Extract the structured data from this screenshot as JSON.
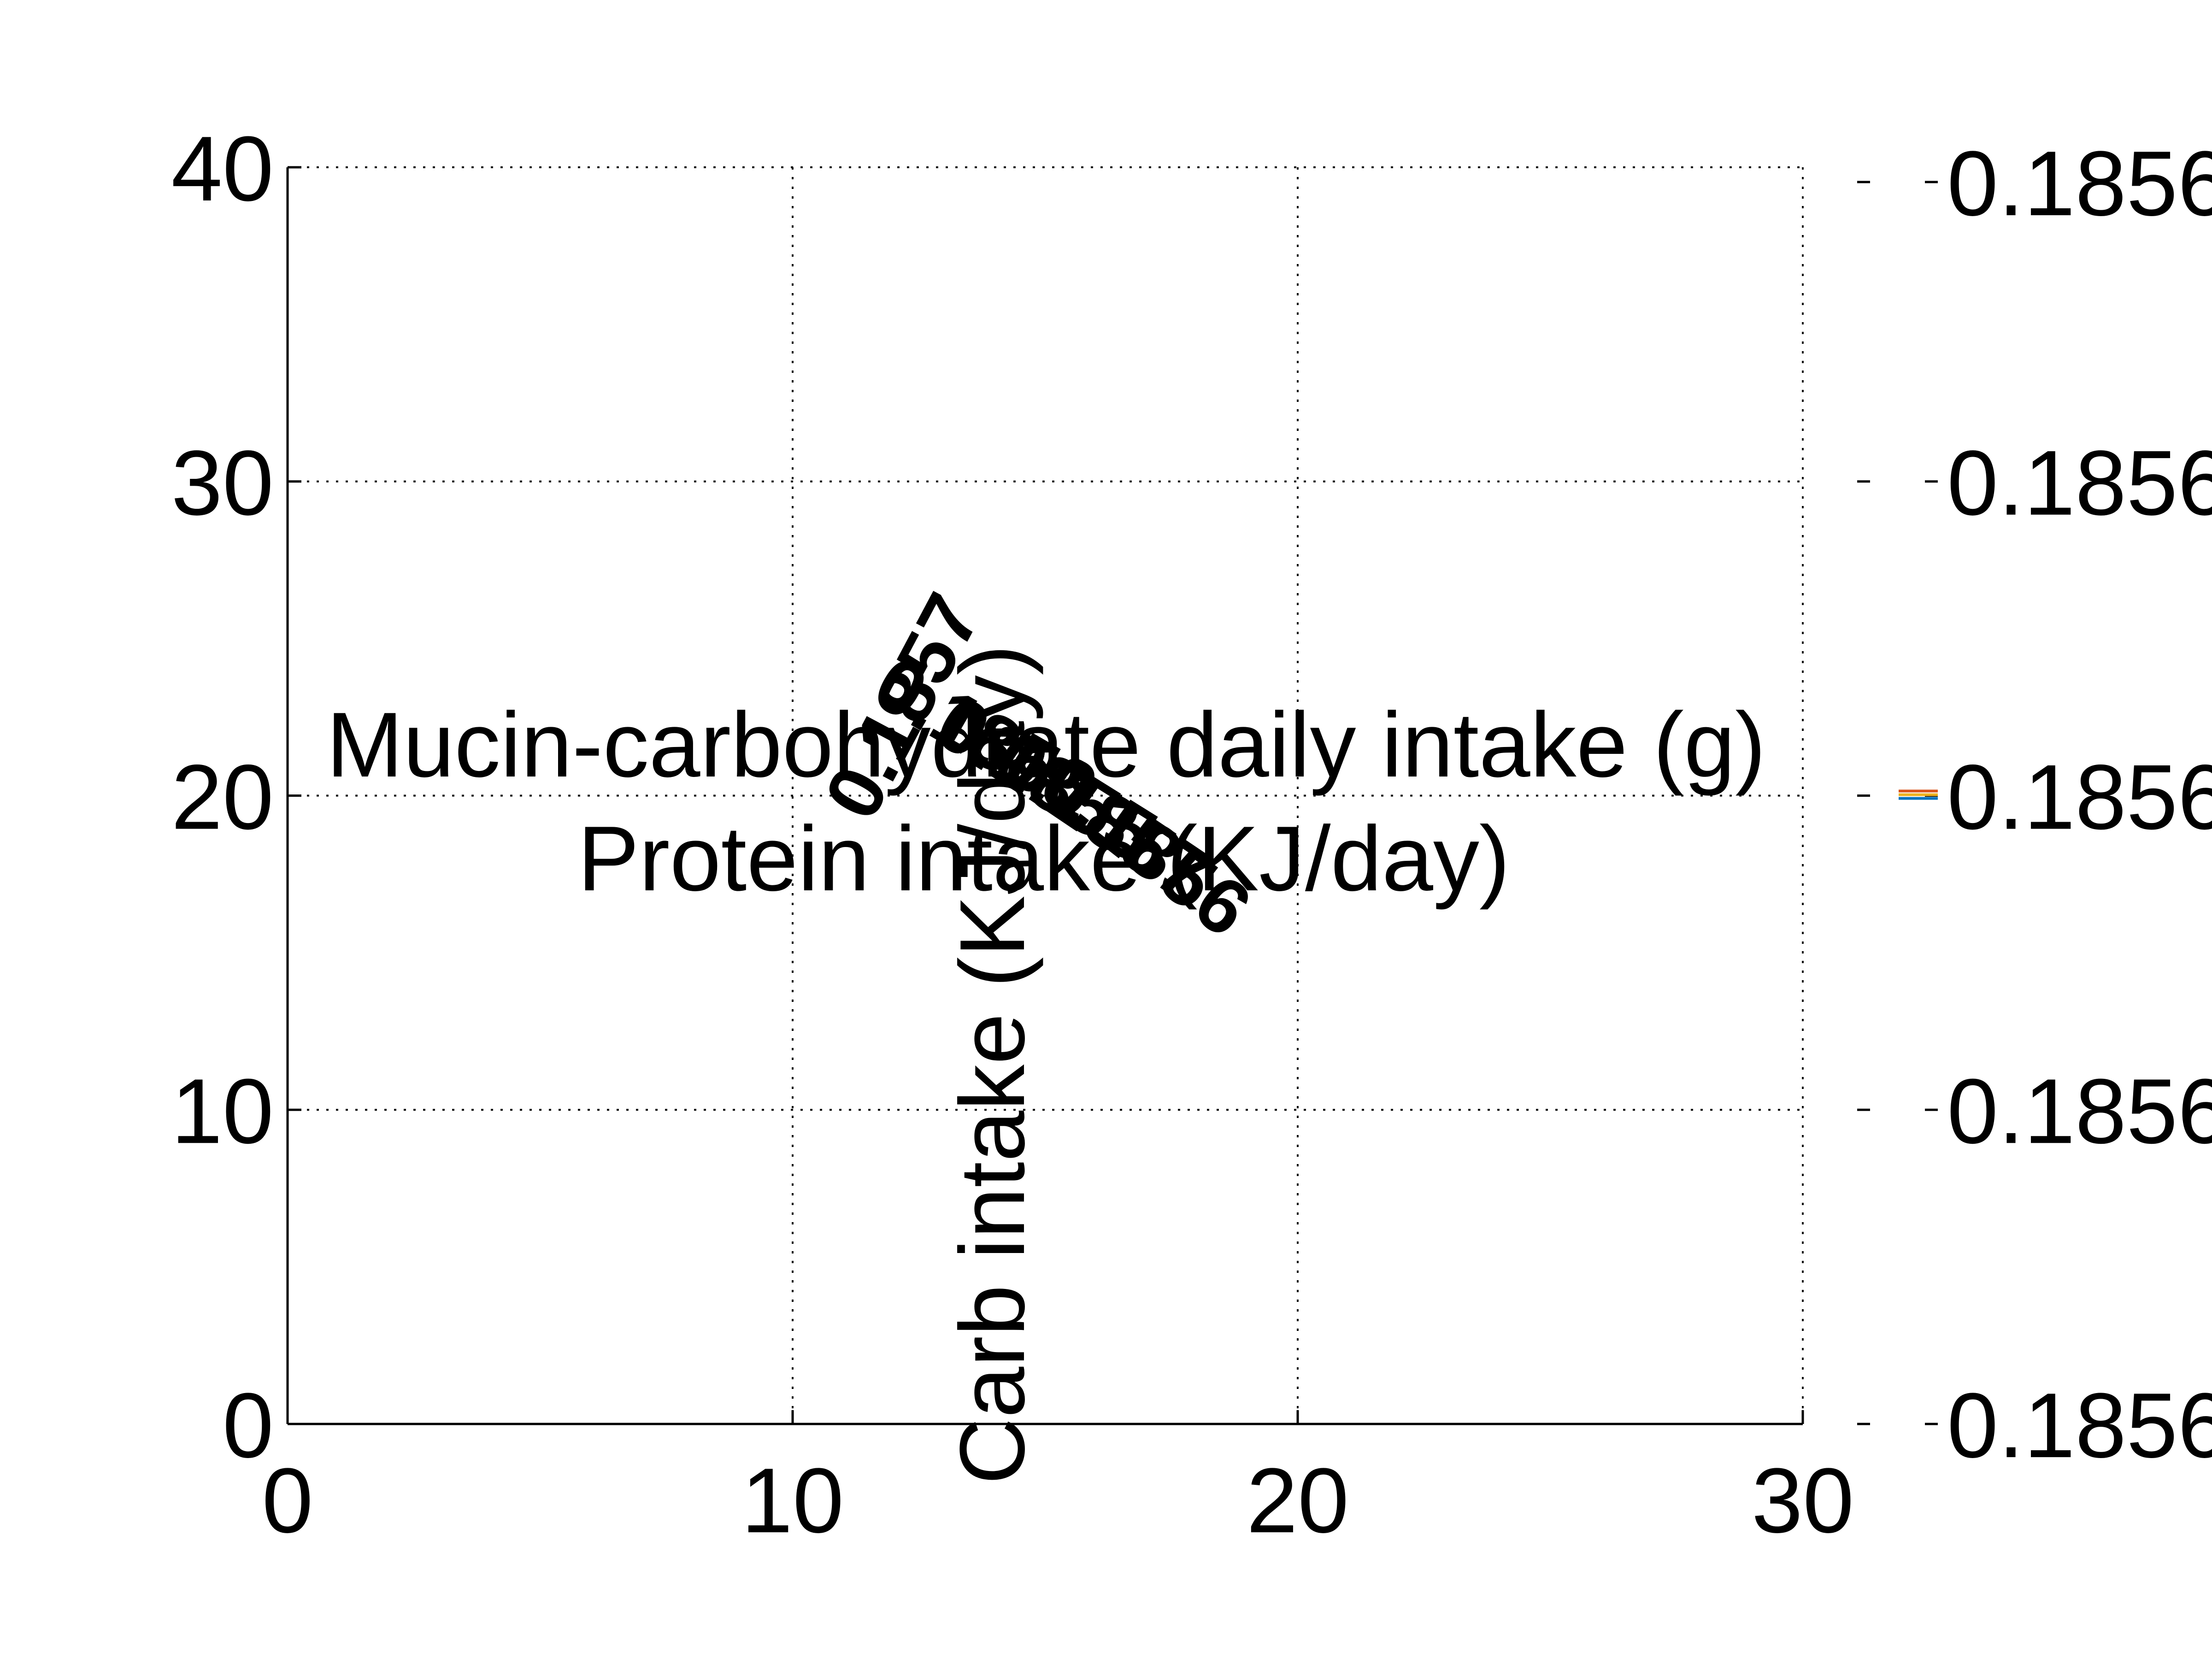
{
  "chart_data": {
    "type": "line",
    "xlim": [
      0,
      30
    ],
    "ylim": [
      0,
      40
    ],
    "x_ticks": [
      "0",
      "10",
      "20",
      "30"
    ],
    "y_ticks": [
      "0",
      "10",
      "20",
      "30",
      "40"
    ],
    "grid": true,
    "grid_style": "dotted",
    "title": "Mucin-carbohydrate daily intake (g)",
    "xlabel": "Protein intake (KJ/day)",
    "ylabel": "Carb intake (KJ/day)",
    "colorbar": {
      "tick_labels": [
        "0.1856",
        "0.1856",
        "0.1856",
        "0.1856",
        "0.1856"
      ],
      "line_colors": [
        "#d95319",
        "#edb120",
        "#0072bd"
      ]
    },
    "overlapping_labels": [
      "0.1857",
      "0.1856",
      "0.1855",
      "0.1857",
      "0.1856"
    ]
  }
}
